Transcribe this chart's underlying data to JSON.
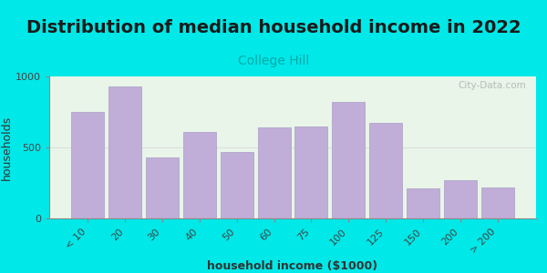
{
  "title": "Distribution of median household income in 2022",
  "subtitle": "College Hill",
  "xlabel": "household income ($1000)",
  "ylabel": "households",
  "categories": [
    "< 10",
    "20",
    "30",
    "40",
    "50",
    "60",
    "75",
    "100",
    "125",
    "150",
    "200",
    "> 200"
  ],
  "values": [
    750,
    930,
    430,
    610,
    470,
    640,
    650,
    820,
    670,
    210,
    270,
    220
  ],
  "bar_color": "#c0aed8",
  "bar_edge_color": "#a090c0",
  "background_color": "#00e8e8",
  "plot_bg_top": "#e8f5e8",
  "plot_bg_bottom": "#ffffff",
  "ylim": [
    0,
    1000
  ],
  "title_fontsize": 14,
  "subtitle_fontsize": 10,
  "label_fontsize": 9,
  "tick_fontsize": 8,
  "watermark": "City-Data.com"
}
